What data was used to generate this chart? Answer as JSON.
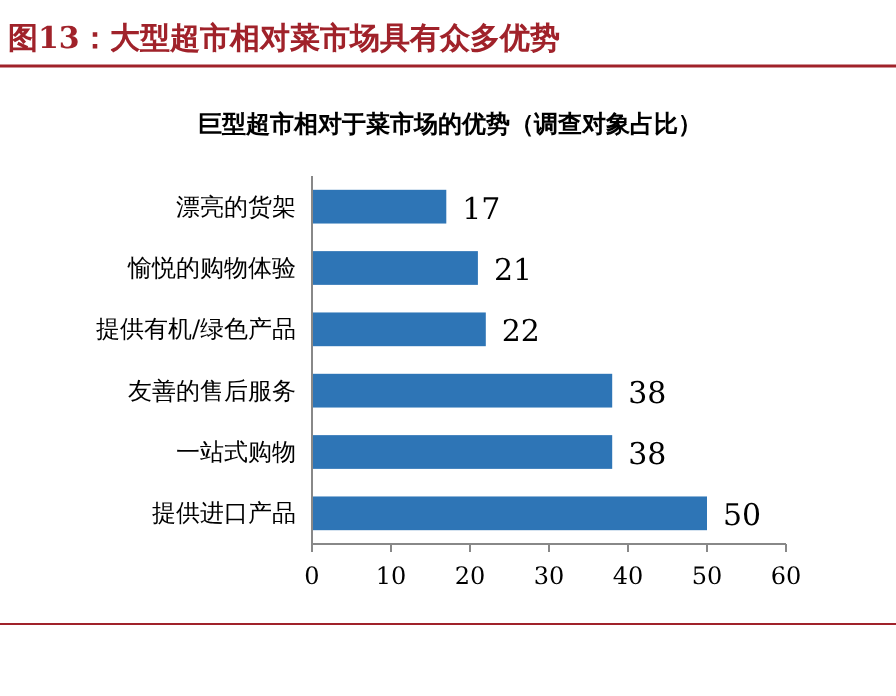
{
  "chart_data": {
    "type": "bar",
    "orientation": "horizontal",
    "title": "图13：大型超市相对菜市场具有众多优势",
    "subtitle": "巨型超市相对于菜市场的优势（调查对象占比）",
    "categories": [
      "漂亮的货架",
      "愉悦的购物体验",
      "提供有机/绿色产品",
      "友善的售后服务",
      "一站式购物",
      "提供进口产品"
    ],
    "values": [
      17,
      21,
      22,
      38,
      38,
      50
    ],
    "color": "#2e75b6",
    "xlim": [
      0,
      60
    ],
    "xticks": [
      0,
      10,
      20,
      30,
      40,
      50,
      60
    ],
    "data_labels": true
  }
}
